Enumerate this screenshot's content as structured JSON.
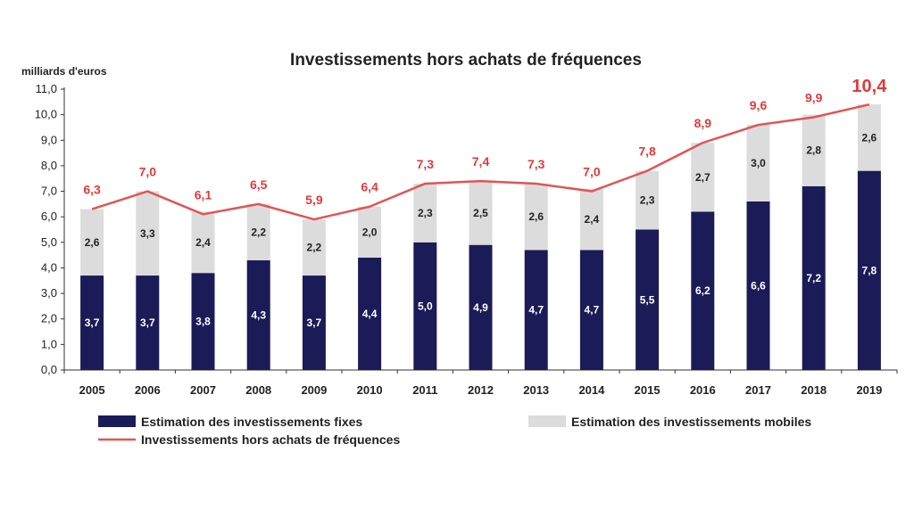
{
  "chart_data": {
    "type": "bar",
    "stacked": true,
    "title": "Investissements  hors achats de fréquences",
    "ylabel": "milliards d'euros",
    "ylim": [
      0,
      11
    ],
    "yticks": [
      "0,0",
      "1,0",
      "2,0",
      "3,0",
      "4,0",
      "5,0",
      "6,0",
      "7,0",
      "8,0",
      "9,0",
      "10,0",
      "11,0"
    ],
    "categories": [
      "2005",
      "2006",
      "2007",
      "2008",
      "2009",
      "2010",
      "2011",
      "2012",
      "2013",
      "2014",
      "2015",
      "2016",
      "2017",
      "2018",
      "2019"
    ],
    "series": [
      {
        "name": "Estimation des investissements fixes",
        "kind": "bar",
        "color": "#1b1b57",
        "values": [
          3.7,
          3.7,
          3.8,
          4.3,
          3.7,
          4.4,
          5.0,
          4.9,
          4.7,
          4.7,
          5.5,
          6.2,
          6.6,
          7.2,
          7.8
        ],
        "labels": [
          "3,7",
          "3,7",
          "3,8",
          "4,3",
          "3,7",
          "4,4",
          "5,0",
          "4,9",
          "4,7",
          "4,7",
          "5,5",
          "6,2",
          "6,6",
          "7,2",
          "7,8"
        ]
      },
      {
        "name": "Estimation des investissements  mobiles",
        "kind": "bar",
        "color": "#dcdcdc",
        "values": [
          2.6,
          3.3,
          2.4,
          2.2,
          2.2,
          2.0,
          2.3,
          2.5,
          2.6,
          2.4,
          2.3,
          2.7,
          3.0,
          2.8,
          2.6
        ],
        "labels": [
          "2,6",
          "3,3",
          "2,4",
          "2,2",
          "2,2",
          "2,0",
          "2,3",
          "2,5",
          "2,6",
          "2,4",
          "2,3",
          "2,7",
          "3,0",
          "2,8",
          "2,6"
        ]
      },
      {
        "name": "Investissements hors achats de fréquences",
        "kind": "line",
        "color": "#e05555",
        "values": [
          6.3,
          7.0,
          6.1,
          6.5,
          5.9,
          6.4,
          7.3,
          7.4,
          7.3,
          7.0,
          7.8,
          8.9,
          9.6,
          9.9,
          10.4
        ],
        "labels": [
          "6,3",
          "7,0",
          "6,1",
          "6,5",
          "5,9",
          "6,4",
          "7,3",
          "7,4",
          "7,3",
          "7,0",
          "7,8",
          "8,9",
          "9,6",
          "9,9",
          "10,4"
        ]
      }
    ],
    "grid": false,
    "legend_position": "bottom"
  }
}
